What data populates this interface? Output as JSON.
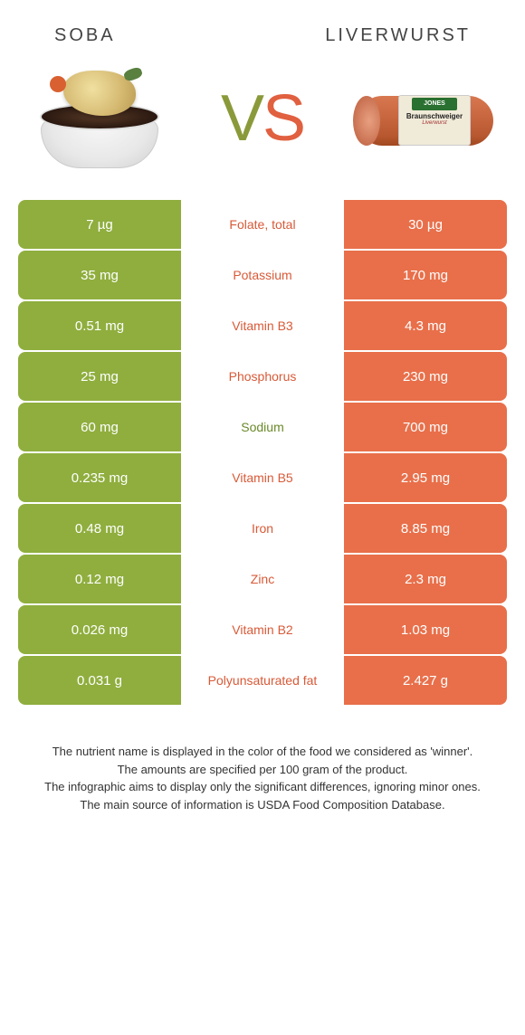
{
  "colors": {
    "green": "#8fae3e",
    "orange": "#e86f4a",
    "green_text": "#6a8a2a",
    "orange_text": "#d85a38",
    "background": "#ffffff"
  },
  "header": {
    "left": "SOBA",
    "right": "LIVERWURST",
    "vs_v": "V",
    "vs_s": "S"
  },
  "liverwurst_label": {
    "brand": "JONES",
    "name": "Braunschweiger",
    "sub": "Liverwurst"
  },
  "rows": [
    {
      "left": "7 µg",
      "label": "Folate, total",
      "right": "30 µg",
      "winner": "orange"
    },
    {
      "left": "35 mg",
      "label": "Potassium",
      "right": "170 mg",
      "winner": "orange"
    },
    {
      "left": "0.51 mg",
      "label": "Vitamin B3",
      "right": "4.3 mg",
      "winner": "orange"
    },
    {
      "left": "25 mg",
      "label": "Phosphorus",
      "right": "230 mg",
      "winner": "orange"
    },
    {
      "left": "60 mg",
      "label": "Sodium",
      "right": "700 mg",
      "winner": "green"
    },
    {
      "left": "0.235 mg",
      "label": "Vitamin B5",
      "right": "2.95 mg",
      "winner": "orange"
    },
    {
      "left": "0.48 mg",
      "label": "Iron",
      "right": "8.85 mg",
      "winner": "orange"
    },
    {
      "left": "0.12 mg",
      "label": "Zinc",
      "right": "2.3 mg",
      "winner": "orange"
    },
    {
      "left": "0.026 mg",
      "label": "Vitamin B2",
      "right": "1.03 mg",
      "winner": "orange"
    },
    {
      "left": "0.031 g",
      "label": "Polyunsaturated fat",
      "right": "2.427 g",
      "winner": "orange"
    }
  ],
  "footer": {
    "line1": "The nutrient name is displayed in the color of the food we considered as 'winner'.",
    "line2": "The amounts are specified per 100 gram of the product.",
    "line3": "The infographic aims to display only the significant differences, ignoring minor ones.",
    "line4": "The main source of information is USDA Food Composition Database."
  }
}
